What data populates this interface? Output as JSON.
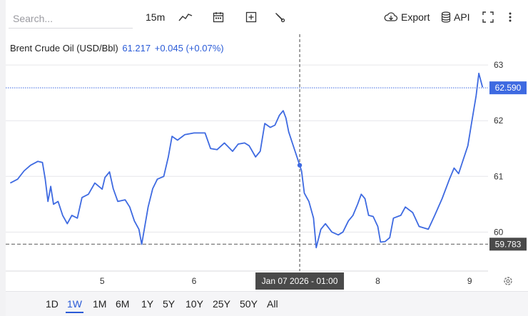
{
  "toolbar": {
    "search_placeholder": "Search...",
    "interval": "15m",
    "export_label": "Export",
    "api_label": "API"
  },
  "header": {
    "name": "Brent Crude Oil (USD/Bbl)",
    "price": "61.217",
    "change": "+0.045 (+0.07%)"
  },
  "ranges": [
    "1D",
    "1W",
    "1M",
    "6M",
    "1Y",
    "5Y",
    "10Y",
    "25Y",
    "50Y",
    "All"
  ],
  "active_range": "1W",
  "crosshair_label": "Jan 07 2026 - 01:00",
  "colors": {
    "line": "#3e6ae1",
    "accent": "#2a5bd7",
    "last_price_bg": "#3e6ae1",
    "low_price_bg": "#4a4a4a"
  },
  "chart_data": {
    "type": "line",
    "series": [
      {
        "values": [
          [
            4.0,
            60.88
          ],
          [
            4.08,
            60.95
          ],
          [
            4.15,
            61.1
          ],
          [
            4.22,
            61.2
          ],
          [
            4.3,
            61.27
          ],
          [
            4.35,
            61.25
          ],
          [
            4.38,
            60.95
          ],
          [
            4.41,
            60.55
          ],
          [
            4.44,
            60.82
          ],
          [
            4.47,
            60.5
          ],
          [
            4.52,
            60.55
          ],
          [
            4.57,
            60.3
          ],
          [
            4.62,
            60.15
          ],
          [
            4.67,
            60.3
          ],
          [
            4.73,
            60.25
          ],
          [
            4.78,
            60.62
          ],
          [
            4.85,
            60.68
          ],
          [
            4.92,
            60.88
          ],
          [
            5.0,
            60.77
          ],
          [
            5.03,
            60.98
          ],
          [
            5.08,
            61.08
          ],
          [
            5.12,
            60.78
          ],
          [
            5.17,
            60.55
          ],
          [
            5.25,
            60.58
          ],
          [
            5.3,
            60.45
          ],
          [
            5.35,
            60.2
          ],
          [
            5.4,
            60.05
          ],
          [
            5.43,
            59.78
          ],
          [
            5.5,
            60.45
          ],
          [
            5.55,
            60.78
          ],
          [
            5.6,
            60.95
          ],
          [
            5.67,
            61.0
          ],
          [
            5.72,
            61.35
          ],
          [
            5.76,
            61.72
          ],
          [
            5.82,
            61.65
          ],
          [
            5.9,
            61.75
          ],
          [
            6.0,
            61.78
          ],
          [
            6.12,
            61.78
          ],
          [
            6.18,
            61.5
          ],
          [
            6.25,
            61.48
          ],
          [
            6.33,
            61.6
          ],
          [
            6.42,
            61.45
          ],
          [
            6.48,
            61.58
          ],
          [
            6.55,
            61.6
          ],
          [
            6.6,
            61.55
          ],
          [
            6.67,
            61.35
          ],
          [
            6.72,
            61.45
          ],
          [
            6.77,
            61.95
          ],
          [
            6.83,
            61.88
          ],
          [
            6.88,
            61.92
          ],
          [
            6.93,
            62.1
          ],
          [
            6.97,
            62.18
          ],
          [
            7.0,
            62.05
          ],
          [
            7.03,
            61.8
          ],
          [
            7.07,
            61.6
          ],
          [
            7.12,
            61.35
          ],
          [
            7.15,
            61.2
          ],
          [
            7.17,
            61.1
          ],
          [
            7.2,
            60.7
          ],
          [
            7.25,
            60.55
          ],
          [
            7.3,
            60.25
          ],
          [
            7.33,
            59.72
          ],
          [
            7.38,
            60.05
          ],
          [
            7.43,
            60.15
          ],
          [
            7.5,
            60.0
          ],
          [
            7.57,
            59.95
          ],
          [
            7.62,
            60.0
          ],
          [
            7.68,
            60.2
          ],
          [
            7.73,
            60.3
          ],
          [
            7.78,
            60.5
          ],
          [
            7.82,
            60.68
          ],
          [
            7.86,
            60.6
          ],
          [
            7.9,
            60.3
          ],
          [
            7.95,
            60.28
          ],
          [
            8.0,
            60.1
          ],
          [
            8.03,
            59.82
          ],
          [
            8.08,
            59.83
          ],
          [
            8.13,
            59.9
          ],
          [
            8.17,
            60.25
          ],
          [
            8.25,
            60.3
          ],
          [
            8.3,
            60.45
          ],
          [
            8.38,
            60.35
          ],
          [
            8.45,
            60.1
          ],
          [
            8.55,
            60.05
          ],
          [
            8.62,
            60.3
          ],
          [
            8.7,
            60.6
          ],
          [
            8.78,
            60.95
          ],
          [
            8.83,
            61.15
          ],
          [
            8.88,
            61.05
          ],
          [
            8.93,
            61.3
          ],
          [
            8.98,
            61.55
          ],
          [
            9.02,
            61.95
          ],
          [
            9.07,
            62.45
          ],
          [
            9.1,
            62.85
          ],
          [
            9.14,
            62.6
          ]
        ]
      }
    ],
    "xlim": [
      3.95,
      9.2
    ],
    "ylim": [
      59.3,
      63.45
    ],
    "x_ticks": [
      {
        "value": 5,
        "label": "5"
      },
      {
        "value": 6,
        "label": "6"
      },
      {
        "value": 8,
        "label": "8"
      },
      {
        "value": 9,
        "label": "9"
      }
    ],
    "y_ticks": [
      60,
      61,
      62,
      63
    ],
    "last_price": 62.59,
    "last_price_label": "62.590",
    "low_price": 59.783,
    "low_price_label": "59.783",
    "crosshair_x": 7.15,
    "crosshair_y": 61.2,
    "grid": true
  }
}
